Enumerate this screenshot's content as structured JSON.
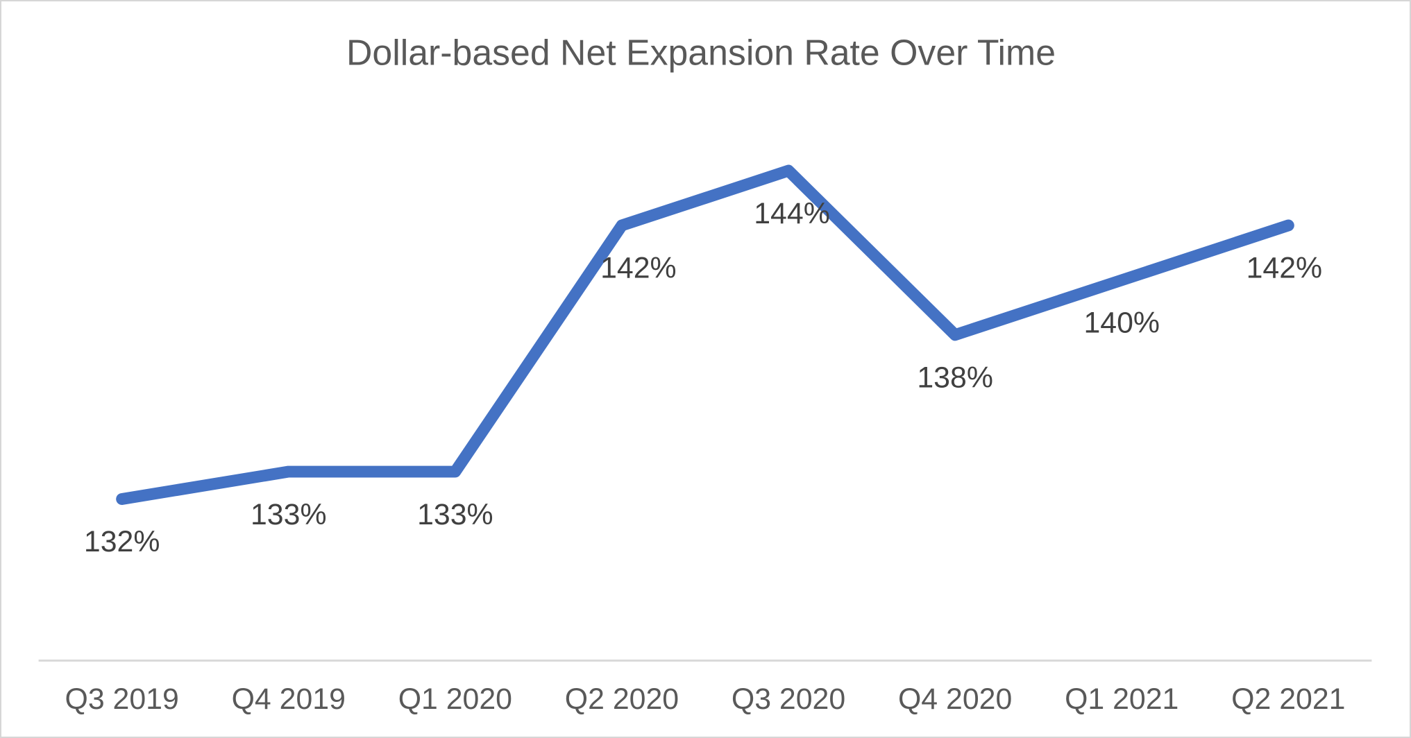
{
  "chart_data": {
    "type": "line",
    "title": "Dollar-based Net Expansion Rate Over Time",
    "categories": [
      "Q3 2019",
      "Q4 2019",
      "Q1 2020",
      "Q2 2020",
      "Q3 2020",
      "Q4 2020",
      "Q1 2021",
      "Q2 2021"
    ],
    "values": [
      132,
      133,
      133,
      142,
      144,
      138,
      140,
      142
    ],
    "data_labels": [
      "132%",
      "133%",
      "133%",
      "142%",
      "144%",
      "138%",
      "140%",
      "142%"
    ],
    "unit": "%",
    "xlabel": "",
    "ylabel": "",
    "ylim": [
      126,
      146
    ],
    "grid": false,
    "legend_position": "none",
    "y_axis_visible": false,
    "data_label_position": "below",
    "colors": {
      "line": "#4472C4",
      "title": "#595959",
      "data_label": "#404040",
      "axis_label": "#595959",
      "axis_line": "#D9D9D9",
      "background": "#FFFFFF",
      "border": "#D6D6D6"
    }
  }
}
